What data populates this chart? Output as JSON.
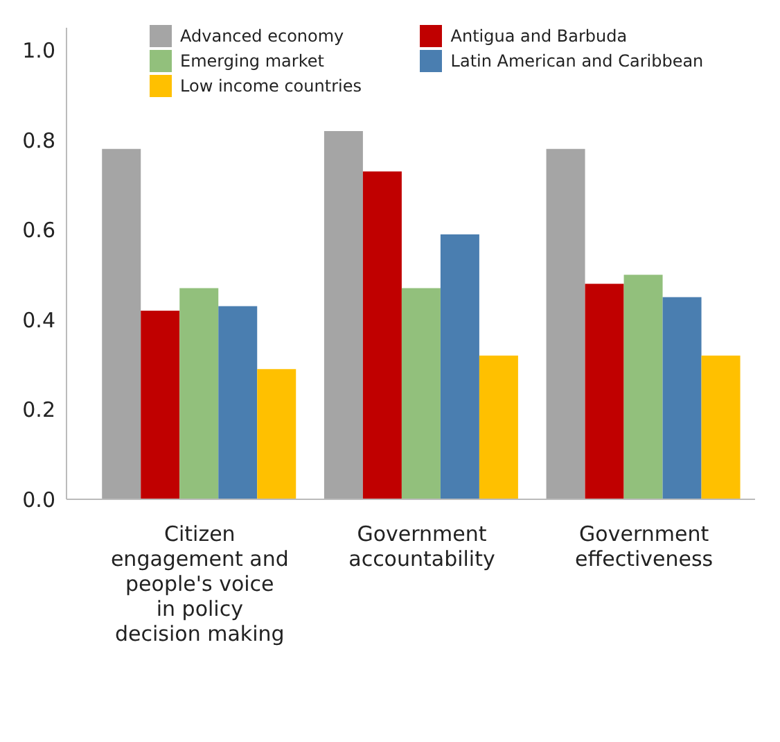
{
  "chart_data": {
    "type": "bar",
    "categories": [
      "Citizen engagement and people's voice in policy decision making",
      "Government accountability",
      "Government effectiveness"
    ],
    "series": [
      {
        "name": "Advanced economy",
        "color": "#a5a5a5",
        "values": [
          0.78,
          0.82,
          0.78
        ]
      },
      {
        "name": "Antigua and Barbuda",
        "color": "#c00000",
        "values": [
          0.42,
          0.73,
          0.48
        ]
      },
      {
        "name": "Emerging market",
        "color": "#92c07c",
        "values": [
          0.47,
          0.47,
          0.5
        ]
      },
      {
        "name": "Latin American and Caribbean",
        "color": "#4a7eb0",
        "values": [
          0.43,
          0.59,
          0.45
        ]
      },
      {
        "name": "Low income countries",
        "color": "#ffc000",
        "values": [
          0.29,
          0.32,
          0.32
        ]
      }
    ],
    "ylim": [
      0,
      1.05
    ],
    "yticks": [
      {
        "value": 0,
        "label": "0.0"
      },
      {
        "value": 0.2,
        "label": "0.2"
      },
      {
        "value": 0.4,
        "label": "0.4"
      },
      {
        "value": 0.6,
        "label": "0.6"
      },
      {
        "value": 0.8,
        "label": "0.8"
      },
      {
        "value": 1,
        "label": "1.0"
      }
    ],
    "grid": false,
    "legend": "top"
  }
}
